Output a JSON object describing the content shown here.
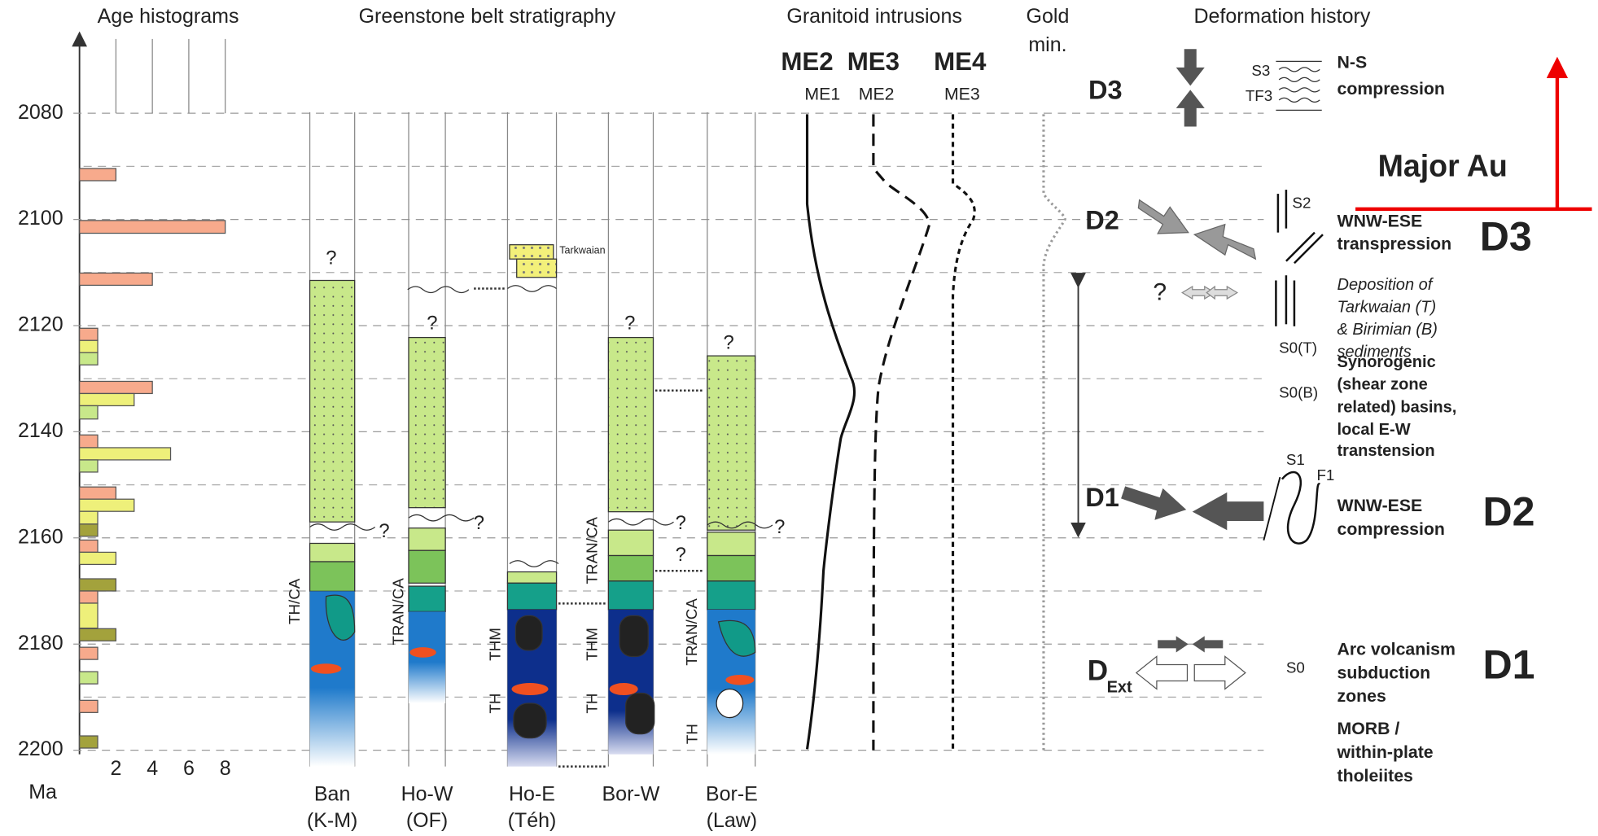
{
  "headers": {
    "age": "Age histograms",
    "strat": "Greenstone belt stratigraphy",
    "granitoid": "Granitoid intrusions",
    "gold": [
      "Gold",
      "min."
    ],
    "deformation": "Deformation history"
  },
  "age_axis": {
    "unit": "Ma",
    "lim": [
      2066,
      2200
    ],
    "ticks": [
      2080,
      2100,
      2120,
      2140,
      2160,
      2180,
      2200
    ],
    "minor_ticks": [
      2090,
      2110,
      2130,
      2150,
      2170,
      2190
    ]
  },
  "histogram": {
    "type": "bar",
    "xlim": [
      0,
      8
    ],
    "xticks": [
      2,
      4,
      6,
      8
    ],
    "bars": [
      {
        "from": 2090.4,
        "to": 2092.7,
        "count": 2,
        "color": "#f7aa8c"
      },
      {
        "from": 2100.2,
        "to": 2102.6,
        "count": 8,
        "color": "#f7aa8c"
      },
      {
        "from": 2110.1,
        "to": 2112.4,
        "count": 4,
        "color": "#f7aa8c"
      },
      {
        "from": 2120.5,
        "to": 2122.8,
        "count": 1,
        "color": "#f7aa8c"
      },
      {
        "from": 2122.8,
        "to": 2125.1,
        "count": 1,
        "color": "#eef07a"
      },
      {
        "from": 2125.1,
        "to": 2127.4,
        "count": 1,
        "color": "#c8e88a"
      },
      {
        "from": 2130.5,
        "to": 2132.8,
        "count": 4,
        "color": "#f7aa8c"
      },
      {
        "from": 2132.8,
        "to": 2135.1,
        "count": 3,
        "color": "#eef07a"
      },
      {
        "from": 2135.1,
        "to": 2137.6,
        "count": 1,
        "color": "#c8e88a"
      },
      {
        "from": 2140.6,
        "to": 2143.0,
        "count": 1,
        "color": "#f7aa8c"
      },
      {
        "from": 2143.0,
        "to": 2145.3,
        "count": 5,
        "color": "#eef07a"
      },
      {
        "from": 2145.3,
        "to": 2147.6,
        "count": 1,
        "color": "#c8e88a"
      },
      {
        "from": 2150.4,
        "to": 2152.7,
        "count": 2,
        "color": "#f7aa8c"
      },
      {
        "from": 2152.7,
        "to": 2155.0,
        "count": 3,
        "color": "#eef07a"
      },
      {
        "from": 2155.0,
        "to": 2157.4,
        "count": 1,
        "color": "#eef07a"
      },
      {
        "from": 2157.4,
        "to": 2159.7,
        "count": 1,
        "color": "#a3a23c"
      },
      {
        "from": 2160.4,
        "to": 2162.7,
        "count": 1,
        "color": "#f7aa8c"
      },
      {
        "from": 2162.7,
        "to": 2165.0,
        "count": 2,
        "color": "#eef07a"
      },
      {
        "from": 2167.7,
        "to": 2170.0,
        "count": 2,
        "color": "#a3a23c"
      },
      {
        "from": 2170.0,
        "to": 2172.3,
        "count": 1,
        "color": "#f7aa8c"
      },
      {
        "from": 2172.3,
        "to": 2177.0,
        "count": 1,
        "color": "#eef07a"
      },
      {
        "from": 2177.1,
        "to": 2179.4,
        "count": 2,
        "color": "#a3a23c"
      },
      {
        "from": 2180.6,
        "to": 2182.9,
        "count": 1,
        "color": "#f7aa8c"
      },
      {
        "from": 2185.2,
        "to": 2187.5,
        "count": 1,
        "color": "#c8e88a"
      },
      {
        "from": 2190.6,
        "to": 2192.9,
        "count": 1,
        "color": "#f7aa8c"
      },
      {
        "from": 2197.3,
        "to": 2199.6,
        "count": 1,
        "color": "#a3a23c"
      }
    ]
  },
  "stratigraphy": {
    "columns": [
      {
        "label": "Ban",
        "sublabel": "(K-M)",
        "affinities": [
          "TH/CA"
        ]
      },
      {
        "label": "Ho-W",
        "sublabel": "(OF)",
        "affinities": [
          "TRAN/CA"
        ]
      },
      {
        "label": "Ho-E",
        "sublabel": "(Téh)",
        "affinities": [
          "THM",
          "TH"
        ]
      },
      {
        "label": "Bor-W",
        "sublabel": null,
        "affinities": [
          "TRAN/CA",
          "THM",
          "TH"
        ]
      },
      {
        "label": "Bor-E",
        "sublabel": "(Law)",
        "affinities": [
          "TRAN/CA",
          "TH"
        ]
      }
    ],
    "query": "?",
    "tarkwaian": "Tarkwaian"
  },
  "granitoids": [
    {
      "revised": "ME2",
      "original": "ME1"
    },
    {
      "revised": "ME3",
      "original": "ME2"
    },
    {
      "revised": "ME4",
      "original": "ME3"
    }
  ],
  "deformation": {
    "d3": {
      "label": "D3",
      "fabrics": [
        "S3",
        "TF3"
      ],
      "description": [
        "N-S",
        "compression"
      ]
    },
    "d2": {
      "label": "D2",
      "fabrics": [
        "S2"
      ],
      "description": [
        "WNW-ESE",
        "transpression"
      ]
    },
    "basins": {
      "query": "?",
      "italic": [
        "Deposition of",
        "Tarkwaian (T)",
        "& Birimian (B)",
        "sediments"
      ],
      "fabrics": [
        "S0(T)",
        "S0(B)"
      ],
      "description": [
        "Synorogenic",
        "(shear zone",
        "related) basins,",
        "local E-W",
        "transtension"
      ]
    },
    "d1": {
      "label": "D1",
      "fabrics": [
        "S1",
        "F1"
      ],
      "description": [
        "WNW-ESE",
        "compression"
      ]
    },
    "dext": {
      "label": "D",
      "subscript": "Ext",
      "fabrics": [
        "S0"
      ],
      "description": [
        "Arc volcanism",
        "subduction",
        "zones"
      ],
      "description2": [
        "MORB /",
        "within-plate",
        "tholeiites"
      ]
    }
  },
  "revision": {
    "major": "Major Au",
    "d3": "D3",
    "d2": "D2",
    "d1": "D1"
  }
}
